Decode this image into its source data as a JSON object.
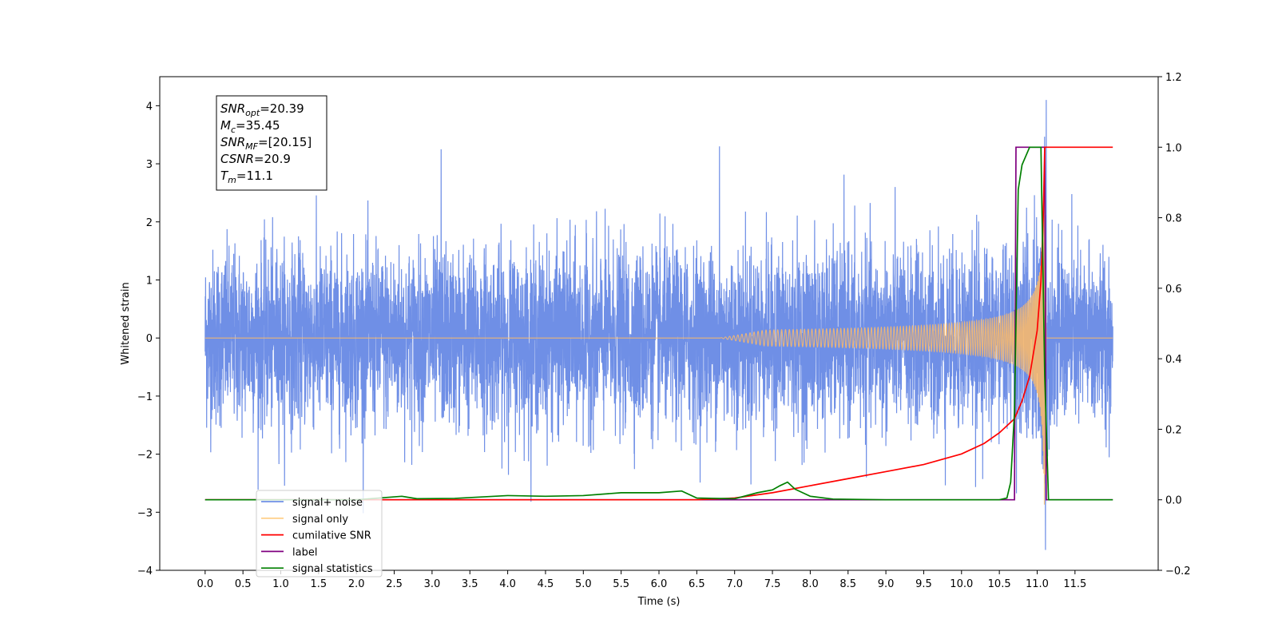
{
  "chart_data": {
    "type": "line",
    "xlabel": "Time (s)",
    "ylabel": "Whitened strain",
    "xlim": [
      -0.6,
      12.6
    ],
    "ylim": [
      -4,
      4.5
    ],
    "y2lim": [
      -0.2,
      1.2
    ],
    "x_ticks": [
      "0.0",
      "0.5",
      "1.0",
      "1.5",
      "2.0",
      "2.5",
      "3.0",
      "3.5",
      "4.0",
      "4.5",
      "5.0",
      "5.5",
      "6.0",
      "6.5",
      "7.0",
      "7.5",
      "8.0",
      "8.5",
      "9.0",
      "9.5",
      "10.0",
      "10.5",
      "11.0",
      "11.5"
    ],
    "y_ticks": [
      "−4",
      "−3",
      "−2",
      "−1",
      "0",
      "1",
      "2",
      "3",
      "4"
    ],
    "y2_ticks": [
      "−0.2",
      "0.0",
      "0.2",
      "0.4",
      "0.6",
      "0.8",
      "1.0",
      "1.2"
    ],
    "legend_position": "lower-left",
    "series": [
      {
        "name": "signal+ noise",
        "color": "#6f8fe6",
        "axis": "left",
        "description_values": {
          "x_range": [
            0,
            12
          ],
          "typical_amplitude": 1.0,
          "max": 4.1,
          "min": -3.65
        }
      },
      {
        "name": "signal only",
        "color": "#ffbb66",
        "axis": "left",
        "chirp": {
          "start": 6.8,
          "merger": 11.1,
          "peak_amplitude": 3.6
        }
      },
      {
        "name": "cumilative SNR",
        "color": "#ff0000",
        "axis": "right",
        "x": [
          6.5,
          7.0,
          7.5,
          8.0,
          8.5,
          9.0,
          9.5,
          10.0,
          10.3,
          10.5,
          10.7,
          10.8,
          10.9,
          11.0,
          11.05,
          11.08,
          11.1,
          11.2,
          12.0
        ],
        "y": [
          0.0,
          0.005,
          0.02,
          0.04,
          0.06,
          0.08,
          0.1,
          0.13,
          0.16,
          0.19,
          0.23,
          0.28,
          0.35,
          0.48,
          0.62,
          0.8,
          1.0,
          1.0,
          1.0
        ]
      },
      {
        "name": "label",
        "color": "#800080",
        "axis": "right",
        "x": [
          0,
          10.7,
          10.72,
          11.1,
          11.12,
          12.0
        ],
        "y": [
          0,
          0,
          1,
          1,
          0,
          0
        ]
      },
      {
        "name": "signal statistics",
        "color": "#008000",
        "axis": "right",
        "x": [
          0,
          2.0,
          2.6,
          2.8,
          3.3,
          4.0,
          4.5,
          5.0,
          5.5,
          6.0,
          6.3,
          6.5,
          7.0,
          7.3,
          7.5,
          7.6,
          7.7,
          7.8,
          8.0,
          8.3,
          9.0,
          10.0,
          10.5,
          10.6,
          10.65,
          10.7,
          10.75,
          10.8,
          10.9,
          11.0,
          11.05,
          11.1,
          11.15,
          12.0
        ],
        "y": [
          0,
          0,
          0.01,
          0.003,
          0.004,
          0.012,
          0.01,
          0.012,
          0.02,
          0.02,
          0.025,
          0.005,
          0.003,
          0.02,
          0.028,
          0.04,
          0.05,
          0.03,
          0.01,
          0.002,
          0,
          0,
          0,
          0.005,
          0.05,
          0.25,
          0.88,
          0.95,
          1.0,
          1.0,
          1.0,
          0.35,
          0.0,
          0.0
        ]
      }
    ],
    "annotation": [
      {
        "base": "SNR",
        "sub": "opt",
        "value": "=20.39"
      },
      {
        "base": "M",
        "sub": "c",
        "value": "=35.45"
      },
      {
        "base": "SNR",
        "sub": "MF",
        "value": "=[20.15]"
      },
      {
        "base": "CSNR",
        "sub": "",
        "value": "=20.9"
      },
      {
        "base": "T",
        "sub": "m",
        "value": "=11.1"
      }
    ]
  },
  "legend": [
    {
      "label": "signal+ noise",
      "color": "#6f8fe6"
    },
    {
      "label": "signal only",
      "color": "#ffcc80"
    },
    {
      "label": "cumilative SNR",
      "color": "#ff0000"
    },
    {
      "label": "label",
      "color": "#800080"
    },
    {
      "label": "signal statistics",
      "color": "#008000"
    }
  ]
}
